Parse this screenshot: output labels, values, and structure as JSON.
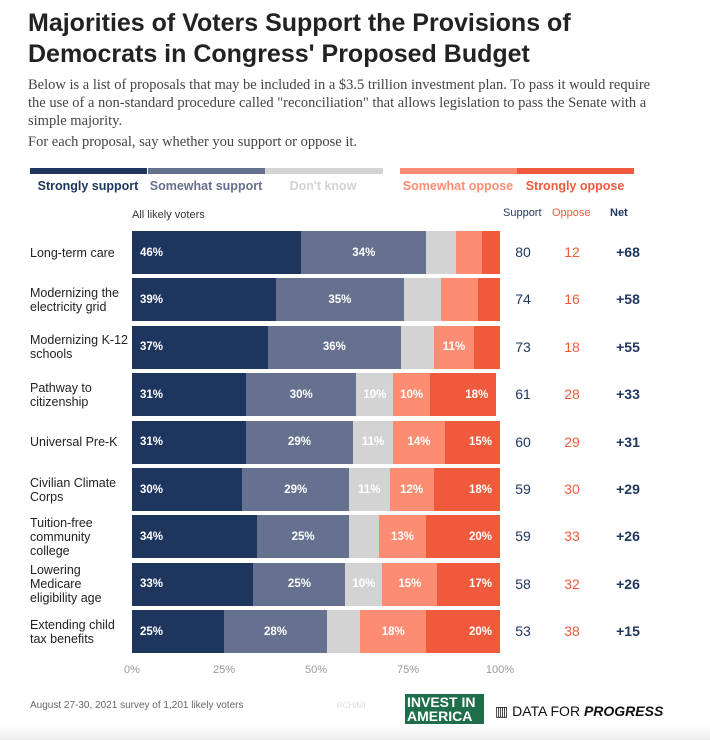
{
  "chart_data": {
    "type": "bar",
    "orientation": "horizontal-stacked",
    "title": "Majorities of Voters Support the Provisions of Democrats in Congress' Proposed Budget",
    "subtitle": [
      "Below is a list of proposals that may be included in a $3.5 trillion investment plan. To pass it would require the use of a non-standard procedure called \"reconciliation\" that allows legislation to pass the Senate with a simple majority.",
      "For each proposal, say whether you support or oppose it."
    ],
    "group_label": "All likely voters",
    "categories": [
      "Long-term care",
      "Modernizing the electricity grid",
      "Modernizing K-12 schools",
      "Pathway to citizenship",
      "Universal Pre-K",
      "Civilian Climate Corps",
      "Tuition-free community college",
      "Lowering Medicare eligibility age",
      "Extending child tax benefits"
    ],
    "series": [
      {
        "name": "Strongly support",
        "color": "#1e355e",
        "values": [
          46,
          39,
          37,
          31,
          31,
          30,
          34,
          33,
          25
        ],
        "labeled": [
          1,
          1,
          1,
          1,
          1,
          1,
          1,
          1,
          1
        ]
      },
      {
        "name": "Somewhat support",
        "color": "#66708f",
        "values": [
          34,
          35,
          36,
          30,
          29,
          29,
          25,
          25,
          28
        ],
        "labeled": [
          1,
          1,
          1,
          1,
          1,
          1,
          1,
          1,
          1
        ]
      },
      {
        "name": "Don't know",
        "color": "#d3d3d3",
        "values": [
          8,
          10,
          9,
          10,
          11,
          11,
          8,
          10,
          9
        ],
        "labeled": [
          0,
          0,
          0,
          1,
          1,
          1,
          0,
          1,
          0
        ]
      },
      {
        "name": "Somewhat oppose",
        "color": "#fc8d72",
        "values": [
          7,
          10,
          11,
          10,
          14,
          12,
          13,
          15,
          18
        ],
        "labeled": [
          0,
          0,
          1,
          1,
          1,
          1,
          1,
          1,
          1
        ]
      },
      {
        "name": "Strongly oppose",
        "color": "#ef5a3c",
        "values": [
          5,
          6,
          7,
          18,
          15,
          18,
          20,
          17,
          20
        ],
        "labeled": [
          0,
          0,
          0,
          1,
          1,
          1,
          1,
          1,
          1
        ]
      }
    ],
    "table_headers": {
      "support": "Support",
      "oppose": "Oppose",
      "net": "Net"
    },
    "support": [
      80,
      74,
      73,
      61,
      60,
      59,
      59,
      58,
      53
    ],
    "oppose": [
      12,
      16,
      18,
      28,
      29,
      30,
      33,
      32,
      38
    ],
    "net": [
      "+68",
      "+58",
      "+55",
      "+33",
      "+31",
      "+29",
      "+26",
      "+26",
      "+15"
    ],
    "xticks": [
      "0%",
      "25%",
      "50%",
      "75%",
      "100%"
    ],
    "xlim": [
      0,
      100
    ]
  },
  "footer": {
    "note": "August 27-30, 2021 survey of 1,201 likely voters",
    "watermark": "RCH/MI",
    "logo1": "INVEST IN AMERICA",
    "logo2_a": "DATA FOR",
    "logo2_b": "PROGRESS"
  }
}
